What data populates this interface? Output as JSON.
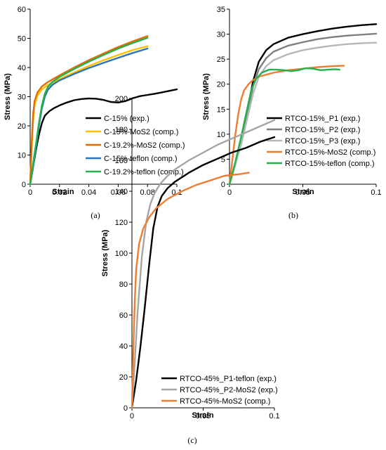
{
  "chart_data": [
    {
      "type": "line",
      "panel": "(a)",
      "xlabel": "Strain",
      "ylabel": "Stress (MPa)",
      "xlim": [
        0,
        0.1
      ],
      "ylim": [
        0,
        60
      ],
      "xticks": [
        0,
        0.02,
        0.04,
        0.06,
        0.08,
        0.1
      ],
      "xtick_labels": [
        "0",
        "0.02",
        "0.04",
        "0.06",
        "0.08",
        "0.1"
      ],
      "yticks": [
        0,
        10,
        20,
        30,
        40,
        50,
        60
      ],
      "ytick_labels": [
        "0",
        "10",
        "20",
        "30",
        "40",
        "50",
        "60"
      ],
      "grid": false,
      "legend_position": "center-right",
      "series": [
        {
          "name": "C-15% (exp.)",
          "color": "#000000",
          "x": [
            0,
            0.002,
            0.004,
            0.006,
            0.008,
            0.01,
            0.013,
            0.016,
            0.02,
            0.025,
            0.03,
            0.035,
            0.04,
            0.045,
            0.05,
            0.055,
            0.06,
            0.065,
            0.07,
            0.075,
            0.08,
            0.085,
            0.09,
            0.095,
            0.1
          ],
          "y": [
            0,
            6,
            12,
            17,
            21,
            23.5,
            25,
            26,
            27,
            28,
            28.8,
            29.2,
            29.4,
            29.3,
            28.9,
            28.2,
            28.0,
            28.5,
            29.5,
            30.2,
            30.6,
            31.0,
            31.5,
            32.0,
            32.5
          ]
        },
        {
          "name": "C-15%-MoS2 (comp.)",
          "color": "#ffc000",
          "x": [
            0,
            0.001,
            0.002,
            0.003,
            0.005,
            0.008,
            0.012,
            0.02,
            0.03,
            0.04,
            0.05,
            0.06,
            0.07,
            0.08
          ],
          "y": [
            0,
            12,
            22,
            27,
            30.5,
            32.5,
            34.0,
            36.0,
            38.3,
            40.5,
            42.5,
            44.3,
            46.0,
            47.3
          ]
        },
        {
          "name": "C-19.2%-MoS2 (comp.)",
          "color": "#e36c0a",
          "x": [
            0,
            0.001,
            0.002,
            0.003,
            0.005,
            0.008,
            0.012,
            0.02,
            0.03,
            0.04,
            0.05,
            0.06,
            0.07,
            0.08
          ],
          "y": [
            0,
            14,
            24,
            28.5,
            31.5,
            33.5,
            35.0,
            37.3,
            40.0,
            42.5,
            44.8,
            47.0,
            49.0,
            50.8
          ]
        },
        {
          "name": "C-15%-teflon (comp.)",
          "color": "#2e75b6",
          "x": [
            0,
            0.002,
            0.004,
            0.006,
            0.008,
            0.01,
            0.012,
            0.015,
            0.02,
            0.03,
            0.04,
            0.05,
            0.06,
            0.07,
            0.08
          ],
          "y": [
            0,
            6,
            13,
            20,
            26,
            30,
            32.3,
            34.0,
            35.6,
            37.8,
            39.8,
            41.6,
            43.3,
            45.0,
            46.5
          ]
        },
        {
          "name": "C-19.2%-teflon (comp.)",
          "color": "#22b14c",
          "x": [
            0,
            0.002,
            0.004,
            0.006,
            0.008,
            0.01,
            0.012,
            0.015,
            0.02,
            0.03,
            0.04,
            0.05,
            0.06,
            0.07,
            0.08
          ],
          "y": [
            0,
            7,
            14,
            21,
            27,
            31,
            33.3,
            35.0,
            36.8,
            39.5,
            42.0,
            44.3,
            46.5,
            48.4,
            50.2
          ]
        }
      ]
    },
    {
      "type": "line",
      "panel": "(b)",
      "xlabel": "Strain",
      "ylabel": "Stress (MPa)",
      "xlim": [
        0,
        0.1
      ],
      "ylim": [
        0,
        35
      ],
      "xticks": [
        0,
        0.05,
        0.1
      ],
      "xtick_labels": [
        "0",
        "0.05",
        "0.1"
      ],
      "yticks": [
        0,
        5,
        10,
        15,
        20,
        25,
        30,
        35
      ],
      "ytick_labels": [
        "0",
        "5",
        "10",
        "15",
        "20",
        "25",
        "30",
        "35"
      ],
      "grid": false,
      "legend_position": "bottom-right",
      "series": [
        {
          "name": "RTCO-15%_P1 (exp.)",
          "color": "#000000",
          "x": [
            0,
            0.004,
            0.008,
            0.012,
            0.016,
            0.02,
            0.025,
            0.03,
            0.04,
            0.05,
            0.06,
            0.07,
            0.08,
            0.09,
            0.1
          ],
          "y": [
            0,
            4,
            9,
            14.5,
            20.5,
            24.5,
            26.8,
            28.0,
            29.3,
            30.0,
            30.6,
            31.1,
            31.5,
            31.8,
            32.0
          ]
        },
        {
          "name": "RTCO-15%_P2 (exp.)",
          "color": "#7f7f7f",
          "x": [
            0,
            0.004,
            0.008,
            0.012,
            0.016,
            0.02,
            0.025,
            0.03,
            0.04,
            0.05,
            0.06,
            0.07,
            0.08,
            0.09,
            0.1
          ],
          "y": [
            0,
            4,
            8.5,
            14,
            19.5,
            23.0,
            25.2,
            26.5,
            27.7,
            28.4,
            29.0,
            29.4,
            29.7,
            29.9,
            30.1
          ]
        },
        {
          "name": "RTCO-15%_P3 (exp.)",
          "color": "#b7b7b7",
          "x": [
            0,
            0.004,
            0.008,
            0.012,
            0.016,
            0.02,
            0.025,
            0.03,
            0.04,
            0.05,
            0.06,
            0.07,
            0.08,
            0.09,
            0.1
          ],
          "y": [
            0,
            4,
            8,
            13,
            18,
            21.5,
            23.6,
            24.8,
            26.0,
            26.8,
            27.3,
            27.7,
            28.0,
            28.2,
            28.3
          ]
        },
        {
          "name": "RTCO-15%-MoS2 (comp.)",
          "color": "#ed7d31",
          "x": [
            0,
            0.002,
            0.004,
            0.006,
            0.008,
            0.01,
            0.013,
            0.016,
            0.02,
            0.03,
            0.04,
            0.05,
            0.06,
            0.07,
            0.078
          ],
          "y": [
            0,
            5,
            10,
            14,
            17,
            18.8,
            20.0,
            20.8,
            21.5,
            22.3,
            22.8,
            23.1,
            23.4,
            23.6,
            23.7
          ]
        },
        {
          "name": "RTCO-15%-teflon (comp.)",
          "color": "#22b14c",
          "x": [
            0,
            0.004,
            0.008,
            0.012,
            0.015,
            0.018,
            0.022,
            0.027,
            0.032,
            0.037,
            0.042,
            0.047,
            0.052,
            0.057,
            0.062,
            0.067,
            0.072,
            0.075
          ],
          "y": [
            0,
            4.5,
            9.5,
            15,
            19.0,
            21.0,
            22.3,
            22.9,
            22.9,
            22.8,
            22.6,
            22.8,
            23.2,
            23.1,
            22.8,
            22.9,
            23.0,
            22.9
          ]
        }
      ]
    },
    {
      "type": "line",
      "panel": "(c)",
      "xlabel": "Strain",
      "ylabel": "Stress (MPa)",
      "xlim": [
        0,
        0.1
      ],
      "ylim": [
        0,
        200
      ],
      "xticks": [
        0,
        0.05,
        0.1
      ],
      "xtick_labels": [
        "0",
        "0.05",
        "0.1"
      ],
      "yticks": [
        0,
        20,
        40,
        60,
        80,
        100,
        120,
        140,
        160,
        180,
        200
      ],
      "ytick_labels": [
        "0",
        "20",
        "40",
        "60",
        "80",
        "100",
        "120",
        "140",
        "160",
        "180",
        "200"
      ],
      "grid": false,
      "legend_position": "bottom-right",
      "series": [
        {
          "name": "RTCO-45%_P1-teflon (exp.)",
          "color": "#000000",
          "x": [
            0,
            0.003,
            0.006,
            0.009,
            0.012,
            0.015,
            0.018,
            0.021,
            0.025,
            0.03,
            0.04,
            0.05,
            0.06,
            0.07,
            0.08,
            0.09,
            0.1
          ],
          "y": [
            0,
            18,
            40,
            65,
            92,
            116,
            130,
            137,
            142,
            146,
            152,
            157,
            161,
            165,
            168,
            172,
            175
          ]
        },
        {
          "name": "RTCO-45%_P2-MoS2 (exp.)",
          "color": "#a5a5a5",
          "x": [
            0,
            0.002,
            0.004,
            0.007,
            0.01,
            0.013,
            0.016,
            0.02,
            0.025,
            0.03,
            0.04,
            0.05,
            0.06,
            0.07,
            0.08,
            0.09,
            0.1
          ],
          "y": [
            0,
            30,
            62,
            98,
            120,
            132,
            139,
            145,
            150,
            154,
            160,
            165,
            170,
            174,
            178,
            182,
            186
          ]
        },
        {
          "name": "RTCO-45%-MoS2 (comp.)",
          "color": "#ed7d31",
          "x": [
            0,
            0.001,
            0.002,
            0.003,
            0.005,
            0.008,
            0.012,
            0.017,
            0.025,
            0.035,
            0.045,
            0.055,
            0.065,
            0.075,
            0.082
          ],
          "y": [
            0,
            38,
            70,
            90,
            106,
            116,
            123,
            129,
            135,
            140,
            144,
            147,
            150,
            151,
            152
          ]
        }
      ]
    }
  ],
  "captions": [
    "(a)",
    "(b)",
    "(c)"
  ]
}
